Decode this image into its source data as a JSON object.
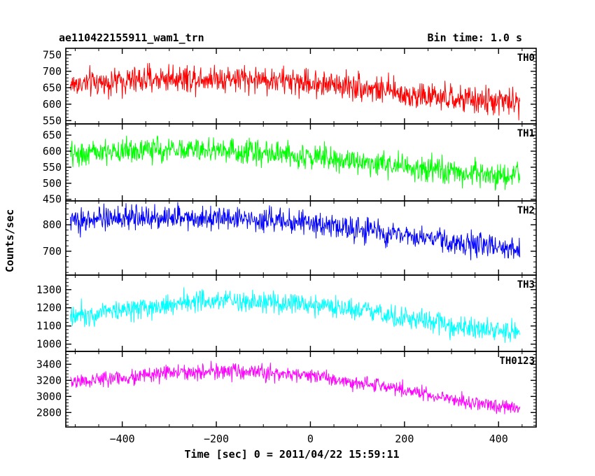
{
  "header": {
    "left": "ae110422155911_wam1_trn",
    "right": "Bin time: 1.0 s"
  },
  "colors": {
    "th0": "#ff0000",
    "th1": "#00ff00",
    "th2": "#0000ff",
    "th3": "#00ffff",
    "th0123": "#ff00ff",
    "frame": "#000000",
    "background": "#ffffff"
  },
  "chart_data": {
    "type": "line",
    "title": "ae110422155911_wam1_trn",
    "subtitle": "Bin time: 1.0 s",
    "xlabel": "Time [sec] 0 = 2011/04/22 15:59:11",
    "ylabel": "Counts/sec",
    "xlim": [
      -520,
      480
    ],
    "x_ticks": [
      -400,
      -200,
      0,
      200,
      400
    ],
    "x_tick_labels": [
      "−400",
      "−200",
      "0",
      "200",
      "400"
    ],
    "x_range": [
      -510,
      445
    ],
    "bin": 1,
    "grid": false,
    "legend": "none",
    "panels": [
      {
        "name": "TH0",
        "ylim": [
          540,
          770
        ],
        "y_ticks": [
          550,
          600,
          650,
          700,
          750
        ],
        "trend_knots": [
          [
            -510,
            660
          ],
          [
            -400,
            670
          ],
          [
            -300,
            680
          ],
          [
            -200,
            680
          ],
          [
            -100,
            675
          ],
          [
            0,
            665
          ],
          [
            100,
            655
          ],
          [
            200,
            630
          ],
          [
            300,
            615
          ],
          [
            445,
            605
          ]
        ],
        "noise": 38
      },
      {
        "name": "TH1",
        "ylim": [
          445,
          685
        ],
        "y_ticks": [
          450,
          500,
          550,
          600,
          650
        ],
        "trend_knots": [
          [
            -510,
            590
          ],
          [
            -400,
            600
          ],
          [
            -300,
            605
          ],
          [
            -200,
            605
          ],
          [
            -100,
            595
          ],
          [
            0,
            585
          ],
          [
            100,
            570
          ],
          [
            200,
            550
          ],
          [
            300,
            535
          ],
          [
            445,
            520
          ]
        ],
        "noise": 35
      },
      {
        "name": "TH2",
        "ylim": [
          610,
          890
        ],
        "y_ticks": [
          700,
          800
        ],
        "trend_knots": [
          [
            -510,
            815
          ],
          [
            -400,
            825
          ],
          [
            -300,
            830
          ],
          [
            -200,
            830
          ],
          [
            -100,
            820
          ],
          [
            0,
            805
          ],
          [
            100,
            785
          ],
          [
            200,
            760
          ],
          [
            300,
            735
          ],
          [
            445,
            705
          ]
        ],
        "noise": 40
      },
      {
        "name": "TH3",
        "ylim": [
          960,
          1380
        ],
        "y_ticks": [
          1000,
          1100,
          1200,
          1300
        ],
        "trend_knots": [
          [
            -510,
            1160
          ],
          [
            -400,
            1190
          ],
          [
            -300,
            1220
          ],
          [
            -200,
            1240
          ],
          [
            -100,
            1230
          ],
          [
            0,
            1210
          ],
          [
            100,
            1180
          ],
          [
            200,
            1150
          ],
          [
            300,
            1100
          ],
          [
            445,
            1060
          ]
        ],
        "noise": 55
      },
      {
        "name": "TH0123",
        "ylim": [
          2620,
          3560
        ],
        "y_ticks": [
          2800,
          3000,
          3200,
          3400
        ],
        "trend_knots": [
          [
            -510,
            3180
          ],
          [
            -400,
            3230
          ],
          [
            -300,
            3290
          ],
          [
            -200,
            3310
          ],
          [
            -100,
            3290
          ],
          [
            0,
            3260
          ],
          [
            100,
            3180
          ],
          [
            200,
            3080
          ],
          [
            300,
            2960
          ],
          [
            445,
            2840
          ]
        ],
        "noise": 85
      }
    ]
  }
}
